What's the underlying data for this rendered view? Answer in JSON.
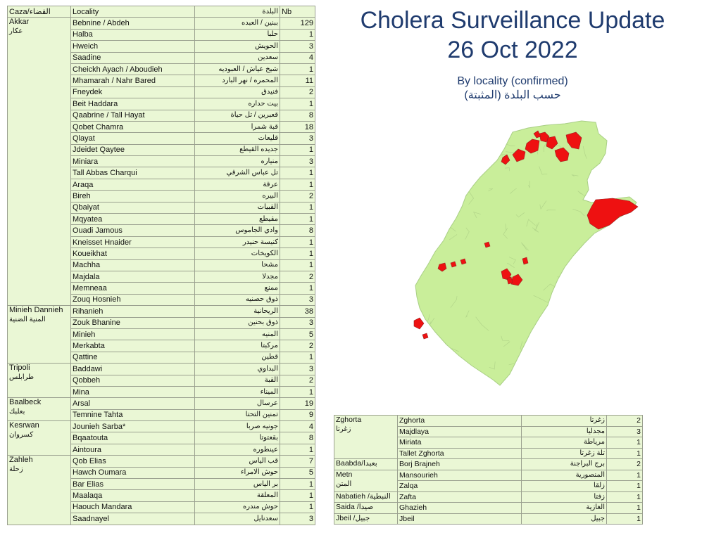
{
  "title": "Cholera Surveillance Update",
  "date": "26 Oct 2022",
  "subtitle_en": "By locality (confirmed)",
  "subtitle_ar": "حسب البلدة (المثبتة)",
  "header": {
    "caza": "Caza/القضاء",
    "locality": "Locality",
    "locality_ar": "البلدة",
    "nb": "Nb"
  },
  "map_colors": {
    "land": "#c9ee9a",
    "border": "#b2d58a",
    "affected": "#ee1111"
  },
  "groups_left": [
    {
      "caza": "Akkar",
      "caza_ar": "عكار",
      "rows": [
        {
          "loc": "Bebnine / Abdeh",
          "ar": "ببنين / العبده",
          "nb": "129"
        },
        {
          "loc": "Halba",
          "ar": "حلبا",
          "nb": "1"
        },
        {
          "loc": "Hweich",
          "ar": "الحويش",
          "nb": "3"
        },
        {
          "loc": "Saadine",
          "ar": "سعدين",
          "nb": "4"
        },
        {
          "loc": "Cheickh Ayach / Aboudieh",
          "ar": "شيخ عياش / العبوديه",
          "nb": "1"
        },
        {
          "loc": "Mhamarah / Nahr Bared",
          "ar": "المحمره / نهر البارد",
          "nb": "11"
        },
        {
          "loc": "Fneydek",
          "ar": "فنيدق",
          "nb": "2"
        },
        {
          "loc": "Beit Haddara",
          "ar": "بيت حداره",
          "nb": "1"
        },
        {
          "loc": "Qaabrine / Tall Hayat",
          "ar": "قعبرين / تل حياة",
          "nb": "8"
        },
        {
          "loc": "Qobet Chamra",
          "ar": "قبة شمرا",
          "nb": "18"
        },
        {
          "loc": "Qlayat",
          "ar": "قليعات",
          "nb": "3"
        },
        {
          "loc": "Jdeidet Qaytee",
          "ar": "جديده القيطع",
          "nb": "1"
        },
        {
          "loc": "Miniara",
          "ar": "منياره",
          "nb": "3"
        },
        {
          "loc": "Tall Abbas Charqui",
          "ar": "تل عباس الشرقي",
          "nb": "1"
        },
        {
          "loc": "Araqa",
          "ar": "عرقة",
          "nb": "1"
        },
        {
          "loc": "Bireh",
          "ar": "البيره",
          "nb": "2"
        },
        {
          "loc": "Qbaiyat",
          "ar": "القبيات",
          "nb": "1"
        },
        {
          "loc": "Mqyatea",
          "ar": "مقيطع",
          "nb": "1"
        },
        {
          "loc": "Ouadi Jamous",
          "ar": "وادي الجاموس",
          "nb": "8"
        },
        {
          "loc": "Kneisset Hnaider",
          "ar": "كنيسة حنيدر",
          "nb": "1"
        },
        {
          "loc": "Koueikhat",
          "ar": "الكويخات",
          "nb": "1"
        },
        {
          "loc": "Machha",
          "ar": "مشحا",
          "nb": "1"
        },
        {
          "loc": "Majdala",
          "ar": "مجدلا",
          "nb": "2"
        },
        {
          "loc": "Memneaa",
          "ar": "ممنع",
          "nb": "1"
        },
        {
          "loc": "Zouq Hosnieh",
          "ar": "ذوق حصنيه",
          "nb": "3"
        }
      ]
    },
    {
      "caza": "Minieh Dannieh",
      "caza_ar": "المنية الضنية",
      "rows": [
        {
          "loc": "Rihanieh",
          "ar": "الريحانية",
          "nb": "38"
        },
        {
          "loc": "Zouk Bhanine",
          "ar": "ذوق بحنين",
          "nb": "3"
        },
        {
          "loc": "Minieh",
          "ar": "المنيه",
          "nb": "5"
        },
        {
          "loc": "Merkabta",
          "ar": "مركبتا",
          "nb": "2"
        },
        {
          "loc": "Qattine",
          "ar": "قطين",
          "nb": "1"
        }
      ]
    },
    {
      "caza": "Tripoli",
      "caza_ar": "طرابلس",
      "rows": [
        {
          "loc": "Baddawi",
          "ar": "البداوي",
          "nb": "3"
        },
        {
          "loc": "Qobbeh",
          "ar": "القبة",
          "nb": "2"
        },
        {
          "loc": "Mina",
          "ar": "الميناء",
          "nb": "1"
        }
      ]
    },
    {
      "caza": "Baalbeck",
      "caza_ar": "بعلبك",
      "rows": [
        {
          "loc": "Arsal",
          "ar": "عرسال",
          "nb": "19"
        },
        {
          "loc": "Temnine Tahta",
          "ar": "تمنين التحتا",
          "nb": "9"
        }
      ]
    },
    {
      "caza": "Kesrwan",
      "caza_ar": "كسروان",
      "rows": [
        {
          "loc": "Jounieh Sarba*",
          "ar": "جونيه صربا",
          "nb": "4"
        },
        {
          "loc": "Bqaatouta",
          "ar": "بقعتوتا",
          "nb": "8"
        },
        {
          "loc": "Aintoura",
          "ar": "عينطوره",
          "nb": "1"
        }
      ]
    },
    {
      "caza": "Zahleh",
      "caza_ar": "زحلة",
      "rows": [
        {
          "loc": "Qob Elias",
          "ar": "قب الياس",
          "nb": "7"
        },
        {
          "loc": "Hawch Oumara",
          "ar": "حوش الامراء",
          "nb": "5"
        },
        {
          "loc": "Bar Elias",
          "ar": "بر الياس",
          "nb": "1"
        },
        {
          "loc": "Maalaqa",
          "ar": "المعلقة",
          "nb": "1"
        },
        {
          "loc": "Haouch Mandara",
          "ar": "حوش مندره",
          "nb": "1"
        },
        {
          "loc": "Saadnayel",
          "ar": "سعدنايل",
          "nb": "3"
        }
      ]
    }
  ],
  "groups_right": [
    {
      "caza": "Zghorta",
      "caza_ar": "زغرتا",
      "rows": [
        {
          "loc": "Zghorta",
          "ar": "زغرتا",
          "nb": "2"
        },
        {
          "loc": "Majdlaya",
          "ar": "مجدليا",
          "nb": "3"
        },
        {
          "loc": "Miriata",
          "ar": "مرياطة",
          "nb": "1"
        },
        {
          "loc": "Tallet Zghorta",
          "ar": "تلة زغرتا",
          "nb": "1"
        }
      ]
    },
    {
      "caza": "Baabda/بعبدا",
      "caza_ar": "",
      "rows": [
        {
          "loc": "Borj Brajneh",
          "ar": "برج البراجنة",
          "nb": "2"
        }
      ]
    },
    {
      "caza": "Metn",
      "caza_ar": "المتن",
      "rows": [
        {
          "loc": "Mansourieh",
          "ar": "المنصورية",
          "nb": "1"
        },
        {
          "loc": "Zalqa",
          "ar": "زلقا",
          "nb": "1"
        }
      ]
    },
    {
      "caza": "Nabatieh /النبطية",
      "caza_ar": "",
      "rows": [
        {
          "loc": "Zafta",
          "ar": "زفتا",
          "nb": "1"
        }
      ]
    },
    {
      "caza": "Saida /صيدا",
      "caza_ar": "",
      "rows": [
        {
          "loc": "Ghazieh",
          "ar": "الغازية",
          "nb": "1"
        }
      ]
    },
    {
      "caza": "Jbeil /جبيل",
      "caza_ar": "",
      "rows": [
        {
          "loc": "Jbeil",
          "ar": "جبيل",
          "nb": "1"
        }
      ]
    }
  ]
}
